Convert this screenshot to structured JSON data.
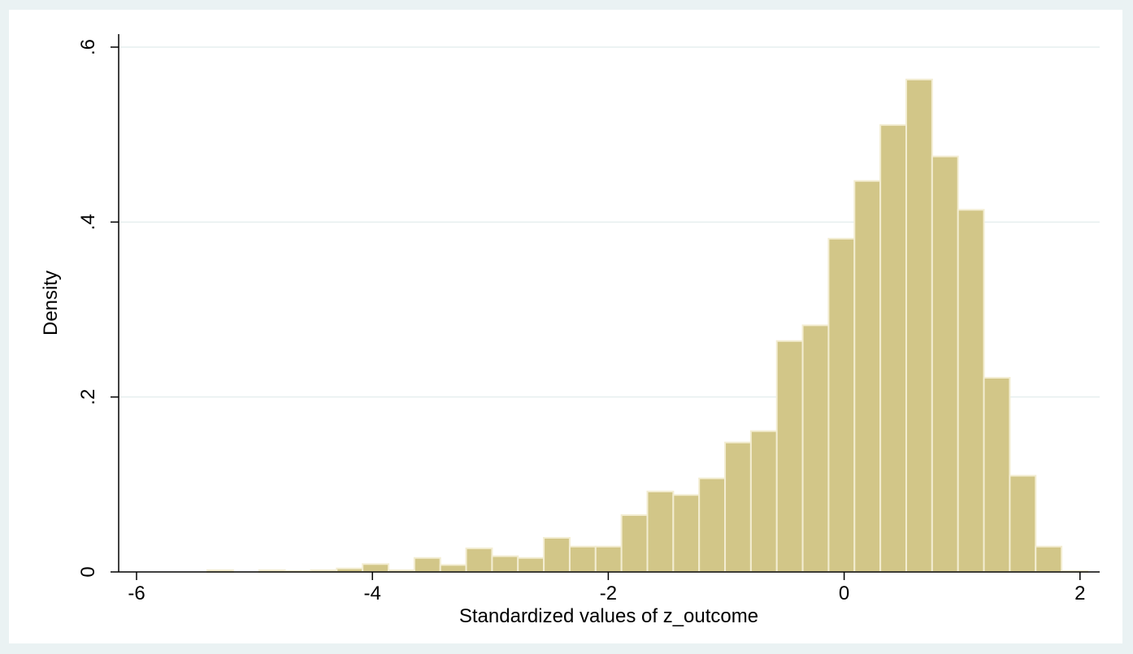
{
  "chart_data": {
    "type": "bar",
    "subtype": "histogram",
    "xlabel": "Standardized values of z_outcome",
    "ylabel": "Density",
    "xlim": [
      -6.05,
      2.1
    ],
    "ylim": [
      0,
      0.6
    ],
    "x_ticks": [
      {
        "value": -6,
        "label": "-6"
      },
      {
        "value": -4,
        "label": "-4"
      },
      {
        "value": -2,
        "label": "-2"
      },
      {
        "value": 0,
        "label": "0"
      },
      {
        "value": 2,
        "label": "2"
      }
    ],
    "y_ticks": [
      {
        "value": 0,
        "label": "0"
      },
      {
        "value": 0.2,
        "label": ".2"
      },
      {
        "value": 0.4,
        "label": ".4"
      },
      {
        "value": 0.6,
        "label": ".6"
      }
    ],
    "grid": {
      "y": true,
      "x": false
    },
    "bin_width": 0.2195,
    "bins": [
      {
        "start": -5.4,
        "value": 0.002
      },
      {
        "start": -4.961,
        "value": 0.002
      },
      {
        "start": -4.7415,
        "value": 0.001
      },
      {
        "start": -4.522,
        "value": 0.002
      },
      {
        "start": -4.3025,
        "value": 0.004
      },
      {
        "start": -4.083,
        "value": 0.009
      },
      {
        "start": -3.8635,
        "value": 0.002
      },
      {
        "start": -3.644,
        "value": 0.016
      },
      {
        "start": -3.4245,
        "value": 0.008
      },
      {
        "start": -3.205,
        "value": 0.027
      },
      {
        "start": -2.9855,
        "value": 0.018
      },
      {
        "start": -2.766,
        "value": 0.016
      },
      {
        "start": -2.5465,
        "value": 0.039
      },
      {
        "start": -2.327,
        "value": 0.029
      },
      {
        "start": -2.1075,
        "value": 0.029
      },
      {
        "start": -1.888,
        "value": 0.065
      },
      {
        "start": -1.6685,
        "value": 0.092
      },
      {
        "start": -1.449,
        "value": 0.088
      },
      {
        "start": -1.2295,
        "value": 0.107
      },
      {
        "start": -1.01,
        "value": 0.148
      },
      {
        "start": -0.7905,
        "value": 0.161
      },
      {
        "start": -0.571,
        "value": 0.264
      },
      {
        "start": -0.3515,
        "value": 0.282
      },
      {
        "start": -0.132,
        "value": 0.381
      },
      {
        "start": 0.0875,
        "value": 0.447
      },
      {
        "start": 0.307,
        "value": 0.511
      },
      {
        "start": 0.5265,
        "value": 0.563
      },
      {
        "start": 0.746,
        "value": 0.475
      },
      {
        "start": 0.9655,
        "value": 0.414
      },
      {
        "start": 1.185,
        "value": 0.222
      },
      {
        "start": 1.4045,
        "value": 0.11
      },
      {
        "start": 1.624,
        "value": 0.029
      },
      {
        "start": 1.8435,
        "value": 0.001
      }
    ],
    "colors": {
      "background": "#eaf2f3",
      "plot_background": "#ffffff",
      "bar_fill": "#d2c688",
      "bar_outline": "#f3edd2",
      "grid": "#e6efef"
    }
  }
}
